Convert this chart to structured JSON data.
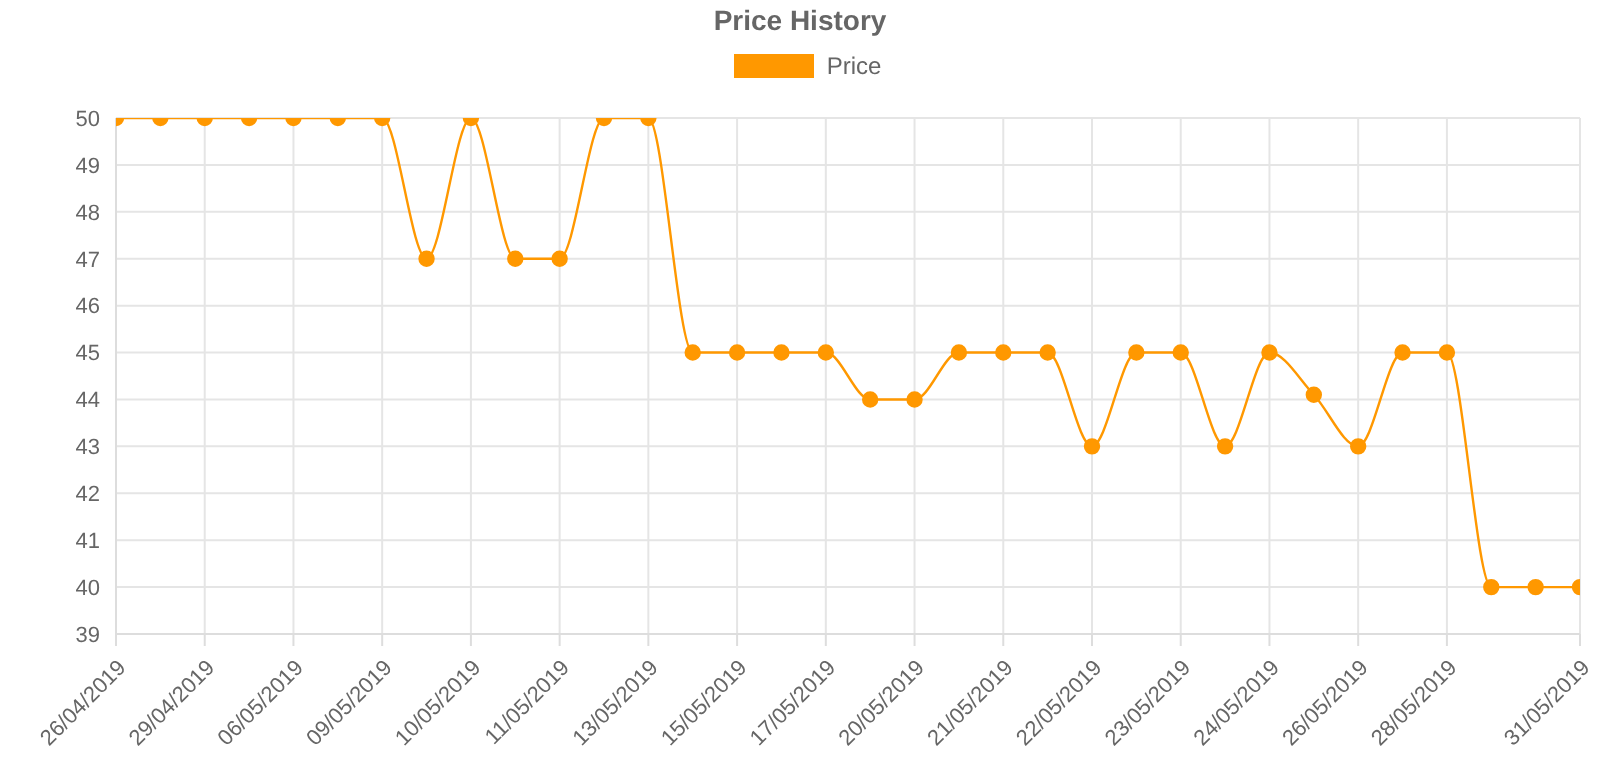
{
  "chart_data": {
    "type": "line",
    "title": "Price History",
    "categories": [
      "26/04/2019",
      null,
      "29/04/2019",
      null,
      "06/05/2019",
      null,
      "09/05/2019",
      null,
      "10/05/2019",
      null,
      "11/05/2019",
      null,
      "13/05/2019",
      null,
      "15/05/2019",
      null,
      "17/05/2019",
      null,
      "20/05/2019",
      null,
      "21/05/2019",
      null,
      "22/05/2019",
      null,
      "23/05/2019",
      null,
      "24/05/2019",
      null,
      "26/05/2019",
      null,
      "28/05/2019",
      null,
      null,
      "31/05/2019"
    ],
    "series": [
      {
        "name": "Price",
        "color": "#ff9800",
        "values": [
          50,
          50,
          50,
          50,
          50,
          50,
          50,
          47,
          50,
          47,
          47,
          50,
          50,
          45,
          45,
          45,
          45,
          44,
          44,
          45,
          45,
          45,
          43,
          45,
          45,
          43,
          45,
          44.1,
          43,
          45,
          45,
          40,
          40,
          40
        ]
      }
    ],
    "ylim": [
      39,
      50
    ],
    "yticks": [
      39,
      40,
      41,
      42,
      43,
      44,
      45,
      46,
      47,
      48,
      49,
      50
    ],
    "grid": true,
    "legend": "top",
    "marker": "circle",
    "line_style": "solid"
  }
}
